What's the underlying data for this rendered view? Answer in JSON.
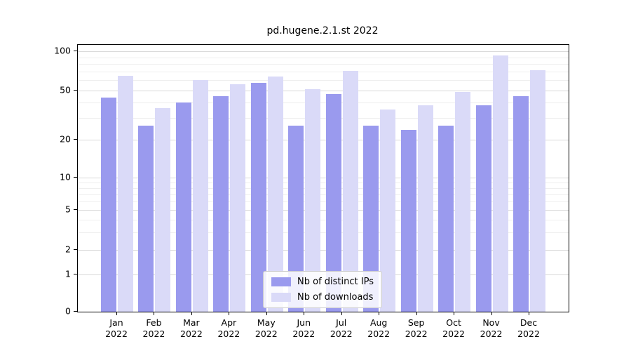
{
  "chart_data": {
    "type": "bar",
    "title": "pd.hugene.2.1.st 2022",
    "categories": [
      "Jan 2022",
      "Feb 2022",
      "Mar 2022",
      "Apr 2022",
      "May 2022",
      "Jun 2022",
      "Jul 2022",
      "Aug 2022",
      "Sep 2022",
      "Oct 2022",
      "Nov 2022",
      "Dec 2022"
    ],
    "series": [
      {
        "name": "Nb of distinct IPs",
        "color": "#9a9aee",
        "values": [
          44,
          26,
          40,
          45,
          57,
          26,
          47,
          26,
          24,
          26,
          38,
          45
        ]
      },
      {
        "name": "Nb of downloads",
        "color": "#dadaf8",
        "values": [
          65,
          36,
          60,
          56,
          64,
          51,
          71,
          35,
          38,
          49,
          93,
          72
        ]
      }
    ],
    "yscale": "symlog",
    "yticks": [
      0,
      1,
      2,
      5,
      10,
      20,
      50,
      100
    ],
    "yticks_minor": [
      3,
      4,
      6,
      7,
      8,
      9,
      30,
      40,
      60,
      70,
      80,
      90
    ],
    "ylim": [
      0,
      112
    ],
    "xlabel": "",
    "ylabel": "",
    "grid": "horizontal",
    "legend_position": "lower center",
    "colors": {
      "axis": "#000000",
      "grid_major": "#d9d9d9",
      "grid_minor": "#eeeeee",
      "background": "#ffffff"
    }
  }
}
